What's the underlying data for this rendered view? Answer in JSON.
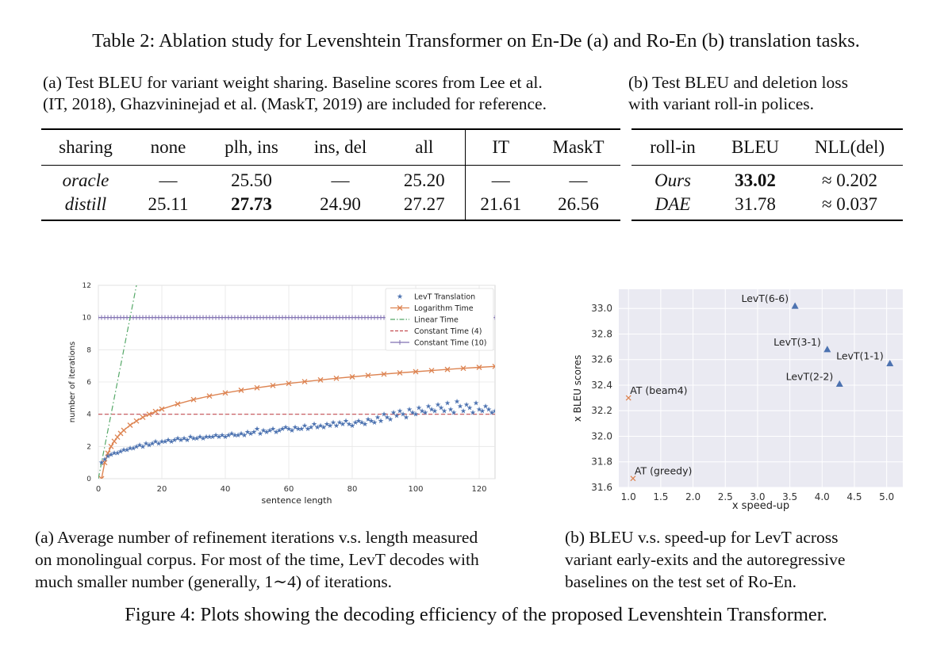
{
  "table": {
    "title": "Table 2: Ablation study for Levenshtein Transformer on En-De (a) and Ro-En (b) translation tasks.",
    "a": {
      "caption_lines": [
        "(a) Test BLEU for variant weight sharing. Baseline scores from Lee et al.",
        "(IT, 2018), Ghazvininejad et al. (MaskT, 2019) are included for reference."
      ],
      "headers": [
        "sharing",
        "none",
        "plh, ins",
        "ins, del",
        "all",
        "IT",
        "MaskT"
      ],
      "rows": [
        [
          "oracle",
          "—",
          "25.50",
          "—",
          "25.20",
          "—",
          "—"
        ],
        [
          "distill",
          "25.11",
          "27.73",
          "24.90",
          "27.27",
          "21.61",
          "26.56"
        ]
      ]
    },
    "b": {
      "caption_lines": [
        "(b)  Test BLEU and deletion loss",
        "with variant roll-in polices."
      ],
      "headers": [
        "roll-in",
        "BLEU",
        "NLL(del)"
      ],
      "rows": [
        [
          "Ours",
          "33.02",
          "≈ 0.202"
        ],
        [
          "DAE",
          "31.78",
          "≈ 0.037"
        ]
      ]
    }
  },
  "chart_data": [
    {
      "type": "line",
      "xlabel": "sentence length",
      "ylabel": "number of iterations",
      "xlim": [
        0,
        125
      ],
      "ylim": [
        0,
        12
      ],
      "xticks": [
        0,
        20,
        40,
        60,
        80,
        100,
        120
      ],
      "yticks": [
        0,
        2,
        4,
        6,
        8,
        10,
        12
      ],
      "grid": true,
      "legend_position": "top-right",
      "colors": {
        "levt": "#4c72b0",
        "log": "#dd8452",
        "linear": "#55a868",
        "const4": "#c44e52",
        "const10": "#8172b2"
      },
      "series": [
        {
          "name": "LevT Translation",
          "marker": "star",
          "x": [
            1,
            2,
            3,
            4,
            5,
            6,
            7,
            8,
            9,
            10,
            11,
            12,
            13,
            14,
            15,
            16,
            17,
            18,
            19,
            20,
            21,
            22,
            23,
            24,
            25,
            26,
            27,
            28,
            29,
            30,
            31,
            32,
            33,
            34,
            35,
            36,
            37,
            38,
            39,
            40,
            41,
            42,
            43,
            44,
            45,
            46,
            47,
            48,
            49,
            50,
            51,
            52,
            53,
            54,
            55,
            56,
            57,
            58,
            59,
            60,
            61,
            62,
            63,
            64,
            65,
            66,
            67,
            68,
            69,
            70,
            71,
            72,
            73,
            74,
            75,
            76,
            77,
            78,
            79,
            80,
            81,
            82,
            83,
            84,
            85,
            86,
            87,
            88,
            89,
            90,
            91,
            92,
            93,
            94,
            95,
            96,
            97,
            98,
            99,
            100,
            101,
            102,
            103,
            104,
            105,
            106,
            107,
            108,
            109,
            110,
            111,
            112,
            113,
            114,
            115,
            116,
            117,
            118,
            119,
            120,
            121,
            122,
            123,
            124,
            125
          ],
          "values": [
            1.0,
            1.2,
            1.4,
            1.5,
            1.6,
            1.6,
            1.7,
            1.8,
            1.8,
            1.9,
            1.9,
            2.0,
            2.1,
            2.0,
            2.2,
            2.1,
            2.2,
            2.3,
            2.2,
            2.3,
            2.3,
            2.4,
            2.3,
            2.4,
            2.5,
            2.4,
            2.5,
            2.4,
            2.6,
            2.5,
            2.5,
            2.6,
            2.5,
            2.6,
            2.6,
            2.6,
            2.7,
            2.6,
            2.7,
            2.6,
            2.7,
            2.8,
            2.7,
            2.7,
            2.8,
            2.7,
            2.9,
            2.8,
            2.9,
            3.1,
            2.8,
            3.0,
            2.9,
            3.0,
            3.1,
            2.9,
            3.0,
            3.1,
            3.2,
            3.1,
            3.0,
            3.2,
            3.1,
            3.1,
            3.3,
            3.1,
            3.2,
            3.4,
            3.2,
            3.3,
            3.2,
            3.4,
            3.3,
            3.5,
            3.3,
            3.5,
            3.4,
            3.6,
            3.4,
            3.3,
            3.5,
            3.6,
            3.5,
            3.4,
            3.7,
            3.6,
            3.5,
            3.8,
            3.6,
            4.0,
            3.8,
            3.7,
            4.1,
            3.9,
            4.2,
            4.0,
            3.8,
            4.3,
            4.1,
            4.0,
            4.4,
            4.2,
            4.1,
            4.5,
            4.3,
            4.2,
            4.6,
            4.4,
            4.2,
            4.7,
            4.3,
            4.1,
            4.8,
            4.5,
            4.2,
            4.6,
            4.4,
            4.1,
            4.7,
            4.3,
            4.2,
            4.5,
            4.3,
            4.1,
            4.2
          ]
        },
        {
          "name": "Logarithm Time",
          "marker": "x",
          "x": [
            1,
            2,
            3,
            4,
            5,
            6,
            7,
            8,
            10,
            12,
            14,
            16,
            18,
            20,
            25,
            30,
            35,
            40,
            45,
            50,
            55,
            60,
            65,
            70,
            75,
            80,
            85,
            90,
            95,
            100,
            105,
            110,
            115,
            120,
            125
          ],
          "values": [
            0.0,
            1.0,
            1.58,
            2.0,
            2.32,
            2.58,
            2.81,
            3.0,
            3.32,
            3.58,
            3.81,
            4.0,
            4.17,
            4.32,
            4.64,
            4.91,
            5.13,
            5.32,
            5.49,
            5.64,
            5.78,
            5.91,
            6.02,
            6.13,
            6.23,
            6.32,
            6.41,
            6.49,
            6.57,
            6.64,
            6.71,
            6.78,
            6.85,
            6.91,
            6.97
          ]
        },
        {
          "name": "Linear Time",
          "marker": "none",
          "x": [
            0,
            12
          ],
          "values": [
            0,
            12
          ]
        },
        {
          "name": "Constant Time (4)",
          "marker": "none",
          "x": [
            0,
            125
          ],
          "values": [
            4,
            4
          ]
        },
        {
          "name": "Constant Time (10)",
          "marker": "plus",
          "x": [
            0,
            125
          ],
          "values": [
            10,
            10
          ]
        }
      ]
    },
    {
      "type": "scatter",
      "xlabel": "x speed-up",
      "ylabel": "x BLEU scores",
      "xlim": [
        0.85,
        5.25
      ],
      "ylim": [
        31.6,
        33.15
      ],
      "xticks": [
        1.0,
        1.5,
        2.0,
        2.5,
        3.0,
        3.5,
        4.0,
        4.5,
        5.0
      ],
      "yticks": [
        31.6,
        31.8,
        32.0,
        32.2,
        32.4,
        32.6,
        32.8,
        33.0
      ],
      "grid": true,
      "colors": {
        "levt": "#4c72b0",
        "at": "#dd8452"
      },
      "points": [
        {
          "label": "LevT(6-6)",
          "x": 3.58,
          "y": 33.02,
          "marker": "triangle"
        },
        {
          "label": "LevT(3-1)",
          "x": 4.08,
          "y": 32.68,
          "marker": "triangle"
        },
        {
          "label": "LevT(1-1)",
          "x": 5.05,
          "y": 32.57,
          "marker": "triangle"
        },
        {
          "label": "LevT(2-2)",
          "x": 4.27,
          "y": 32.41,
          "marker": "triangle"
        },
        {
          "label": "AT (beam4)",
          "x": 1.0,
          "y": 32.3,
          "marker": "x"
        },
        {
          "label": "AT (greedy)",
          "x": 1.07,
          "y": 31.67,
          "marker": "x"
        }
      ]
    }
  ],
  "figure": {
    "caption_a": [
      "(a)  Average number of refinement iterations v.s. length measured",
      "on monolingual corpus. For most of the time, LevT decodes with",
      "much smaller number (generally, 1∼4) of iterations."
    ],
    "caption_b": [
      "(b)  BLEU v.s. speed-up for LevT across",
      "variant early-exits and the autoregressive",
      "baselines on the test set of Ro-En."
    ],
    "title": "Figure 4: Plots showing the decoding efficiency of the proposed Levenshtein Transformer."
  }
}
